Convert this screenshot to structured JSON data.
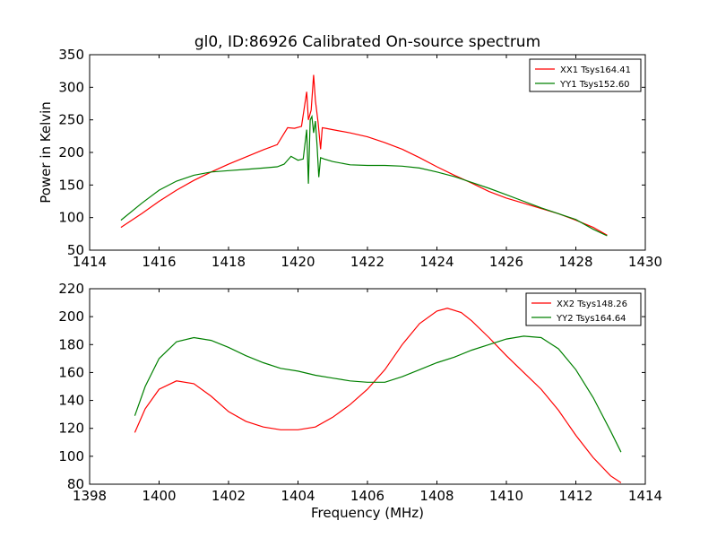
{
  "chart_data": [
    {
      "type": "line",
      "title": "gl0, ID:86926 Calibrated On-source spectrum",
      "xlabel": "",
      "ylabel": "Power in Kelvin",
      "xlim": [
        1414,
        1430
      ],
      "ylim": [
        50,
        350
      ],
      "xticks": [
        1414,
        1416,
        1418,
        1420,
        1422,
        1424,
        1426,
        1428,
        1430
      ],
      "yticks": [
        50,
        100,
        150,
        200,
        250,
        300,
        350
      ],
      "legend_position": "top-right",
      "series": [
        {
          "name": "XX1 Tsys164.41",
          "color": "#ff0000",
          "x": [
            1414.9,
            1415.5,
            1416,
            1416.5,
            1417,
            1417.5,
            1418,
            1418.5,
            1419,
            1419.4,
            1419.7,
            1419.9,
            1420.1,
            1420.25,
            1420.3,
            1420.38,
            1420.45,
            1420.5,
            1420.58,
            1420.65,
            1420.7,
            1420.8,
            1421,
            1421.5,
            1422,
            1422.5,
            1423,
            1423.5,
            1424,
            1424.5,
            1425,
            1425.5,
            1426,
            1426.5,
            1427,
            1427.5,
            1428,
            1428.5,
            1428.9
          ],
          "y": [
            85,
            106,
            125,
            142,
            157,
            170,
            182,
            193,
            204,
            212,
            238,
            237,
            240,
            293,
            250,
            265,
            319,
            280,
            245,
            205,
            238,
            237,
            235,
            230,
            224,
            215,
            205,
            192,
            178,
            165,
            153,
            140,
            130,
            122,
            114,
            106,
            96,
            85,
            73
          ]
        },
        {
          "name": "YY1 Tsys152.60",
          "color": "#008000",
          "x": [
            1414.9,
            1415.5,
            1416,
            1416.5,
            1417,
            1417.5,
            1418,
            1418.5,
            1419,
            1419.4,
            1419.6,
            1419.8,
            1420.0,
            1420.15,
            1420.25,
            1420.3,
            1420.35,
            1420.4,
            1420.45,
            1420.5,
            1420.55,
            1420.6,
            1420.65,
            1420.75,
            1421,
            1421.5,
            1422,
            1422.5,
            1423,
            1423.5,
            1424,
            1424.5,
            1425,
            1425.5,
            1426,
            1426.5,
            1427,
            1427.5,
            1428,
            1428.5,
            1428.9
          ],
          "y": [
            96,
            122,
            142,
            156,
            165,
            170,
            172,
            174,
            176,
            178,
            182,
            194,
            188,
            190,
            235,
            152,
            250,
            255,
            230,
            248,
            210,
            162,
            192,
            190,
            186,
            181,
            180,
            180,
            179,
            176,
            170,
            163,
            154,
            145,
            135,
            125,
            115,
            106,
            97,
            82,
            72
          ]
        }
      ]
    },
    {
      "type": "line",
      "title": "",
      "xlabel": "Frequency (MHz)",
      "ylabel": "",
      "xlim": [
        1398,
        1414
      ],
      "ylim": [
        80,
        220
      ],
      "xticks": [
        1398,
        1400,
        1402,
        1404,
        1406,
        1408,
        1410,
        1412,
        1414
      ],
      "yticks": [
        80,
        100,
        120,
        140,
        160,
        180,
        200,
        220
      ],
      "legend_position": "top-right",
      "series": [
        {
          "name": "XX2 Tsys148.26",
          "color": "#ff0000",
          "x": [
            1399.3,
            1399.6,
            1400,
            1400.5,
            1401,
            1401.5,
            1402,
            1402.5,
            1403,
            1403.5,
            1404,
            1404.5,
            1405,
            1405.5,
            1406,
            1406.5,
            1407,
            1407.5,
            1408,
            1408.3,
            1408.7,
            1409,
            1409.5,
            1410,
            1410.5,
            1411,
            1411.5,
            1412,
            1412.5,
            1413,
            1413.3
          ],
          "y": [
            117,
            134,
            148,
            154,
            152,
            143,
            132,
            125,
            121,
            119,
            119,
            121,
            128,
            137,
            148,
            162,
            180,
            195,
            204,
            206,
            203,
            197,
            185,
            172,
            160,
            148,
            133,
            115,
            99,
            86,
            81
          ]
        },
        {
          "name": "YY2 Tsys164.64",
          "color": "#008000",
          "x": [
            1399.3,
            1399.6,
            1400,
            1400.5,
            1401,
            1401.5,
            1402,
            1402.5,
            1403,
            1403.5,
            1404,
            1404.5,
            1405,
            1405.5,
            1406,
            1406.5,
            1407,
            1407.5,
            1408,
            1408.5,
            1409,
            1409.5,
            1410,
            1410.5,
            1411,
            1411.5,
            1412,
            1412.5,
            1413,
            1413.3
          ],
          "y": [
            129,
            150,
            170,
            182,
            185,
            183,
            178,
            172,
            167,
            163,
            161,
            158,
            156,
            154,
            153,
            153,
            157,
            162,
            167,
            171,
            176,
            180,
            184,
            186,
            185,
            177,
            162,
            142,
            118,
            103
          ]
        }
      ]
    }
  ]
}
